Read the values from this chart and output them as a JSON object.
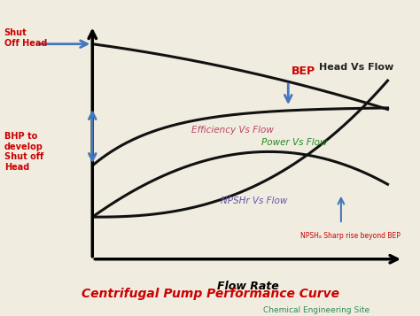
{
  "title": "Centrifugal Pump Performance Curve",
  "subtitle": "Chemical Engineering Site",
  "xlabel": "Flow Rate",
  "bg_color": "#f0ece0",
  "plot_bg": "#ddd8c8",
  "title_color": "#cc0000",
  "subtitle_color": "#2e8b57",
  "curve_color": "#111111",
  "curve_lw": 2.2,
  "arrow_color": "#4477bb",
  "annotations": {
    "shut_off_head": {
      "text": "Shut\nOff Head",
      "color": "#cc0000"
    },
    "bhp_label": {
      "text": "BHP to\ndevelop\nShut off\nHead",
      "color": "#cc0000"
    },
    "bep": {
      "text": "BEP",
      "color": "#cc0000"
    },
    "head_vs_flow": {
      "text": "Head Vs Flow",
      "color": "#222222"
    },
    "efficiency_vs_flow": {
      "text": "Efficiency Vs Flow",
      "color": "#bb4466"
    },
    "power_vs_flow": {
      "text": "Power Vs Flow",
      "color": "#228b22"
    },
    "npshr_vs_flow": {
      "text": "NPSHr Vs Flow",
      "color": "#6655aa"
    },
    "npsh_sharp": {
      "text": "NPSHₐ Sharp rise beyond BEP",
      "color": "#cc0000"
    }
  }
}
